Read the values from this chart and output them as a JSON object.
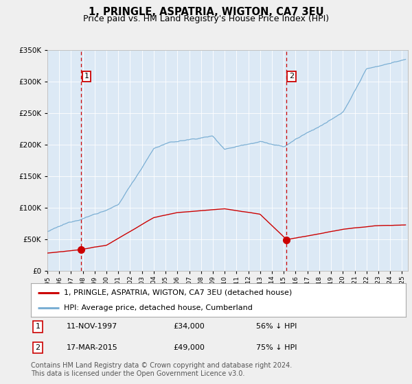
{
  "title": "1, PRINGLE, ASPATRIA, WIGTON, CA7 3EU",
  "subtitle": "Price paid vs. HM Land Registry's House Price Index (HPI)",
  "ylim": [
    0,
    350000
  ],
  "yticks": [
    0,
    50000,
    100000,
    150000,
    200000,
    250000,
    300000,
    350000
  ],
  "xlim_start": 1995.0,
  "xlim_end": 2025.5,
  "sale1_x": 1997.87,
  "sale1_y": 34000,
  "sale2_x": 2015.21,
  "sale2_y": 49000,
  "sale1_date": "11-NOV-1997",
  "sale1_price": "£34,000",
  "sale1_pct": "56% ↓ HPI",
  "sale2_date": "17-MAR-2015",
  "sale2_price": "£49,000",
  "sale2_pct": "75% ↓ HPI",
  "legend_label1": "1, PRINGLE, ASPATRIA, WIGTON, CA7 3EU (detached house)",
  "legend_label2": "HPI: Average price, detached house, Cumberland",
  "footer": "Contains HM Land Registry data © Crown copyright and database right 2024.\nThis data is licensed under the Open Government Licence v3.0.",
  "line_color_red": "#cc0000",
  "line_color_blue": "#7bafd4",
  "bg_color": "#efefef",
  "plot_bg_color": "#dce9f5",
  "grid_color": "#ffffff",
  "title_fontsize": 10.5,
  "subtitle_fontsize": 9,
  "axis_fontsize": 7.5,
  "legend_fontsize": 8,
  "footer_fontsize": 7
}
